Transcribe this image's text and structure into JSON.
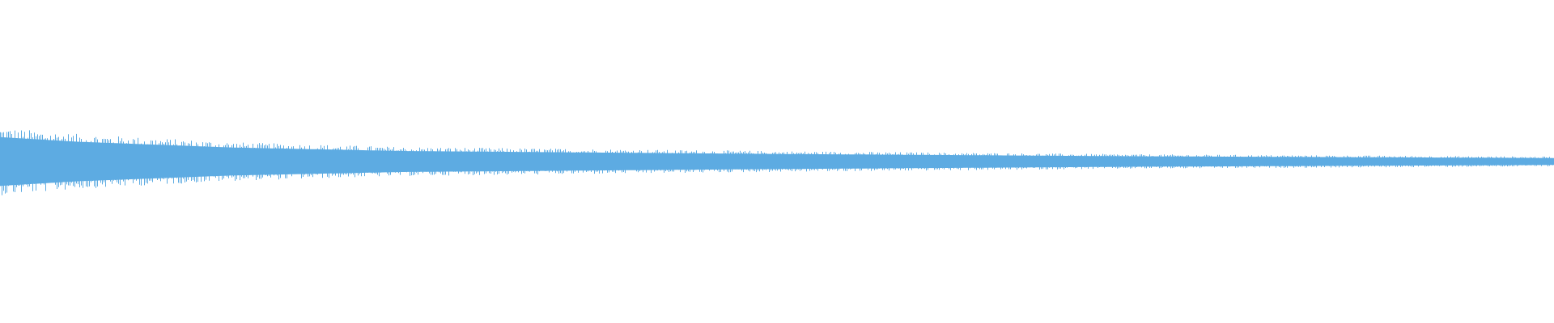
{
  "waveform": {
    "color": "#5DABE2",
    "background": "#FFFFFF",
    "envelope_peak_amplitude": [
      {
        "position": 0.0,
        "amplitude": 0.21
      },
      {
        "position": 0.05,
        "amplitude": 0.17
      },
      {
        "position": 0.15,
        "amplitude": 0.12
      },
      {
        "position": 0.26,
        "amplitude": 0.09
      },
      {
        "position": 0.5,
        "amplitude": 0.065
      },
      {
        "position": 0.73,
        "amplitude": 0.045
      },
      {
        "position": 1.0,
        "amplitude": 0.03
      }
    ]
  }
}
